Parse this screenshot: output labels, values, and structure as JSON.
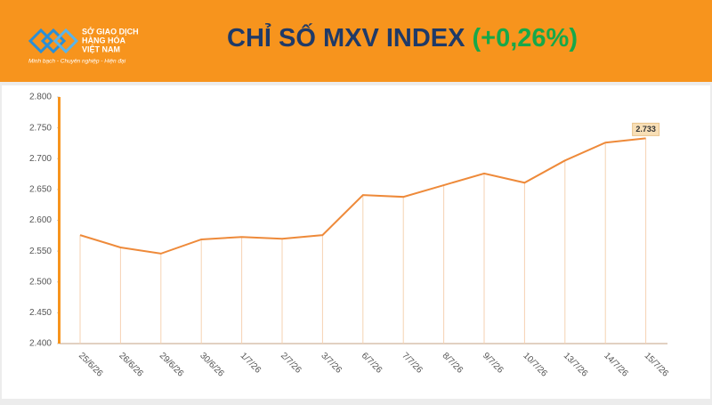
{
  "header": {
    "logo_lines": [
      "SỞ GIAO DỊCH",
      "HÀNG HÓA",
      "VIỆT NAM"
    ],
    "tagline": "Minh bạch - Chuyên nghiệp - Hiện đại",
    "title": "CHỈ SỐ MXV INDEX",
    "change": "(+0,26%)"
  },
  "chart_data": {
    "type": "line",
    "categories": [
      "25/6/26",
      "26/6/26",
      "29/6/26",
      "30/6/26",
      "1/7/26",
      "2/7/26",
      "3/7/26",
      "6/7/26",
      "7/7/26",
      "8/7/26",
      "9/7/26",
      "10/7/26",
      "13/7/26",
      "14/7/26",
      "15/7/26"
    ],
    "values": [
      2576,
      2556,
      2546,
      2569,
      2573,
      2570,
      2576,
      2641,
      2638,
      2657,
      2676,
      2661,
      2697,
      2726,
      2733
    ],
    "value_labels": [
      null,
      null,
      null,
      null,
      null,
      null,
      null,
      null,
      null,
      null,
      null,
      null,
      null,
      null,
      "2.733"
    ],
    "color": "#ee8a3a",
    "ylim": [
      2400,
      2800
    ],
    "yticks": [
      {
        "value": 2400,
        "label": "2.400"
      },
      {
        "value": 2450,
        "label": "2.450"
      },
      {
        "value": 2500,
        "label": "2.500"
      },
      {
        "value": 2550,
        "label": "2.550"
      },
      {
        "value": 2600,
        "label": "2.600"
      },
      {
        "value": 2650,
        "label": "2.650"
      },
      {
        "value": 2700,
        "label": "2.700"
      },
      {
        "value": 2750,
        "label": "2.750"
      },
      {
        "value": 2800,
        "label": "2.800"
      }
    ]
  }
}
